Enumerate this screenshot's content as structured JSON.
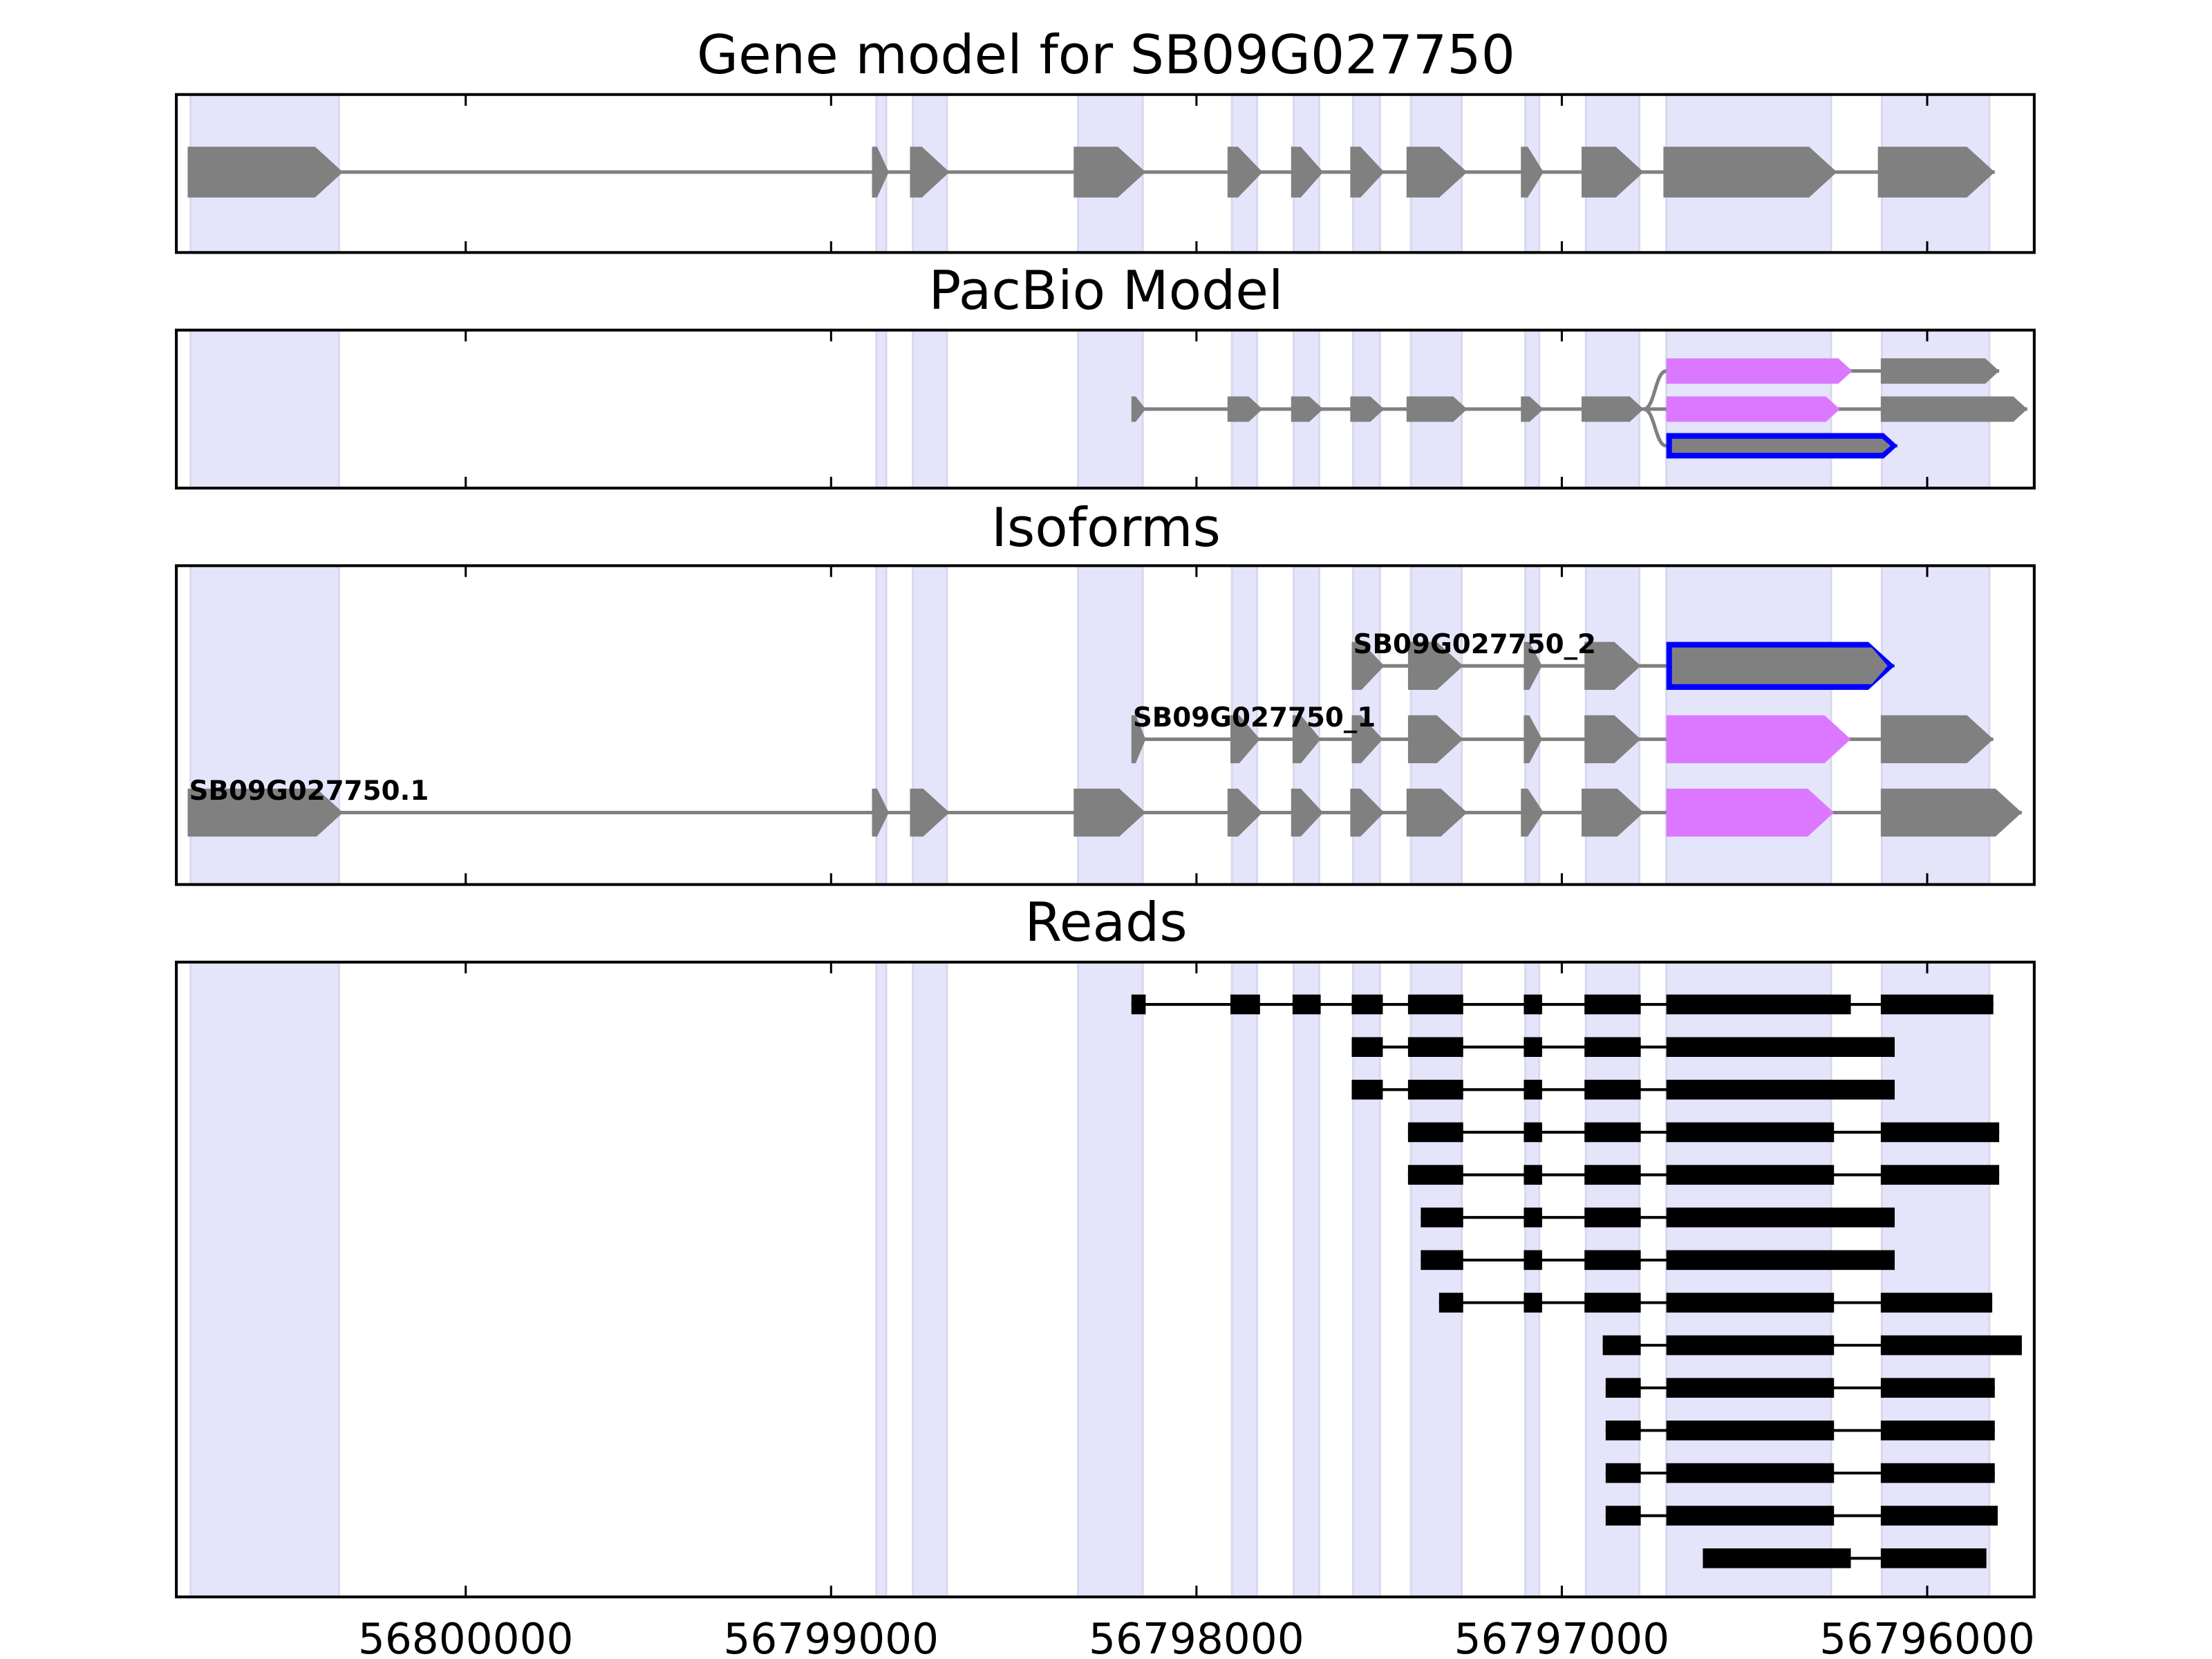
{
  "chart_data": {
    "type": "gene-track",
    "x_axis": {
      "range": [
        56800792,
        56795707
      ],
      "reversed": true,
      "ticks": [
        56800000,
        56799000,
        56798000,
        56797000,
        56796000
      ],
      "tick_labels": [
        "56800000",
        "56799000",
        "56798000",
        "56797000",
        "56796000"
      ]
    },
    "colors": {
      "exon": "#808080",
      "pacbio_exon": "#DC78FF",
      "highlight_outline": "#0000FF",
      "shade": "#E4E4FA",
      "read": "#000000"
    },
    "shaded_regions": [
      [
        56800753,
        56800347
      ],
      [
        56798876,
        56798849
      ],
      [
        56798776,
        56798683
      ],
      [
        56798324,
        56798147
      ],
      [
        56797903,
        56797834
      ],
      [
        56797734,
        56797664
      ],
      [
        56797571,
        56797498
      ],
      [
        56797413,
        56797274
      ],
      [
        56797100,
        56797062
      ],
      [
        56796934,
        56796788
      ],
      [
        56796714,
        56796263
      ],
      [
        56796124,
        56795830
      ]
    ],
    "panels": {
      "gene_model": {
        "title": "Gene model for SB09G027750",
        "exons": [
          [
            56800761,
            56800336
          ],
          [
            56798888,
            56798842
          ],
          [
            56798784,
            56798676
          ],
          [
            56798336,
            56798139
          ],
          [
            56797915,
            56797819
          ],
          [
            56797741,
            56797653
          ],
          [
            56797579,
            56797486
          ],
          [
            56797425,
            56797259
          ],
          [
            56797112,
            56797050
          ],
          [
            56796946,
            56796776
          ],
          [
            56796722,
            56796247
          ],
          [
            56796135,
            56795815
          ]
        ]
      },
      "pacbio": {
        "title": "PacBio Model",
        "rows": [
          {
            "branch": true,
            "exons": [
              [
                56796714,
                56796205,
                "pink"
              ],
              [
                56796127,
                56795803
              ]
            ]
          },
          {
            "branch": false,
            "exons": [
              [
                56798178,
                56798139
              ],
              [
                56797915,
                56797819
              ],
              [
                56797741,
                56797653
              ],
              [
                56797579,
                56797486
              ],
              [
                56797425,
                56797259
              ],
              [
                56797112,
                56797050
              ],
              [
                56796946,
                56796776
              ],
              [
                56796714,
                56796239,
                "pink"
              ],
              [
                56796127,
                56795726
              ]
            ]
          },
          {
            "branch": true,
            "exons": [
              [
                56796714,
                56796081,
                "outline"
              ]
            ]
          }
        ]
      },
      "isoforms": {
        "title": "Isoforms",
        "tracks": [
          {
            "name": "SB09G027750_2",
            "exons": [
              [
                56797575,
                56797486
              ],
              [
                56797421,
                56797270
              ],
              [
                56797104,
                56797054
              ],
              [
                56796938,
                56796784
              ],
              [
                56796714,
                56796089,
                "outline"
              ]
            ]
          },
          {
            "name": "SB09G027750_1",
            "exons": [
              [
                56798178,
                56798139
              ],
              [
                56797907,
                56797826
              ],
              [
                56797737,
                56797660
              ],
              [
                56797575,
                56797490
              ],
              [
                56797421,
                56797270
              ],
              [
                56797104,
                56797054
              ],
              [
                56796938,
                56796784
              ],
              [
                56796714,
                56796209,
                "pink"
              ],
              [
                56796127,
                56795819
              ]
            ]
          },
          {
            "name": "SB09G027750.1",
            "exons": [
              [
                56800761,
                56800336
              ],
              [
                56798888,
                56798842
              ],
              [
                56798784,
                56798676
              ],
              [
                56798336,
                56798139
              ],
              [
                56797915,
                56797819
              ],
              [
                56797741,
                56797653
              ],
              [
                56797579,
                56797486
              ],
              [
                56797425,
                56797259
              ],
              [
                56797112,
                56797050
              ],
              [
                56796946,
                56796776
              ],
              [
                56796714,
                56796255,
                "pink"
              ],
              [
                56796127,
                56795741
              ]
            ]
          }
        ]
      },
      "reads": {
        "title": "Reads",
        "reads": [
          [
            [
              56798178,
              56798139
            ],
            [
              56797907,
              56797826
            ],
            [
              56797737,
              56797660
            ],
            [
              56797575,
              56797490
            ],
            [
              56797421,
              56797270
            ],
            [
              56797104,
              56797054
            ],
            [
              56796938,
              56796784
            ],
            [
              56796714,
              56796209
            ],
            [
              56796127,
              56795819
            ]
          ],
          [
            [
              56797575,
              56797490
            ],
            [
              56797421,
              56797270
            ],
            [
              56797104,
              56797054
            ],
            [
              56796938,
              56796784
            ],
            [
              56796714,
              56796089
            ]
          ],
          [
            [
              56797575,
              56797490
            ],
            [
              56797421,
              56797270
            ],
            [
              56797104,
              56797054
            ],
            [
              56796938,
              56796784
            ],
            [
              56796714,
              56796089
            ]
          ],
          [
            [
              56797421,
              56797270
            ],
            [
              56797104,
              56797054
            ],
            [
              56796938,
              56796784
            ],
            [
              56796714,
              56796255
            ],
            [
              56796127,
              56795803
            ]
          ],
          [
            [
              56797421,
              56797270
            ],
            [
              56797104,
              56797054
            ],
            [
              56796938,
              56796784
            ],
            [
              56796714,
              56796255
            ],
            [
              56796127,
              56795803
            ]
          ],
          [
            [
              56797386,
              56797270
            ],
            [
              56797104,
              56797054
            ],
            [
              56796938,
              56796784
            ],
            [
              56796714,
              56796089
            ]
          ],
          [
            [
              56797386,
              56797270
            ],
            [
              56797104,
              56797054
            ],
            [
              56796938,
              56796784
            ],
            [
              56796714,
              56796089
            ]
          ],
          [
            [
              56797336,
              56797270
            ],
            [
              56797104,
              56797054
            ],
            [
              56796938,
              56796784
            ],
            [
              56796714,
              56796255
            ],
            [
              56796127,
              56795822
            ]
          ],
          [
            [
              56796888,
              56796784
            ],
            [
              56796714,
              56796255
            ],
            [
              56796127,
              56795741
            ]
          ],
          [
            [
              56796880,
              56796784
            ],
            [
              56796714,
              56796255
            ],
            [
              56796127,
              56795815
            ]
          ],
          [
            [
              56796880,
              56796784
            ],
            [
              56796714,
              56796255
            ],
            [
              56796127,
              56795815
            ]
          ],
          [
            [
              56796880,
              56796784
            ],
            [
              56796714,
              56796255
            ],
            [
              56796127,
              56795815
            ]
          ],
          [
            [
              56796880,
              56796784
            ],
            [
              56796714,
              56796255
            ],
            [
              56796127,
              56795807
            ]
          ],
          [
            [
              56796614,
              56796209
            ],
            [
              56796127,
              56795838
            ]
          ]
        ]
      }
    }
  }
}
